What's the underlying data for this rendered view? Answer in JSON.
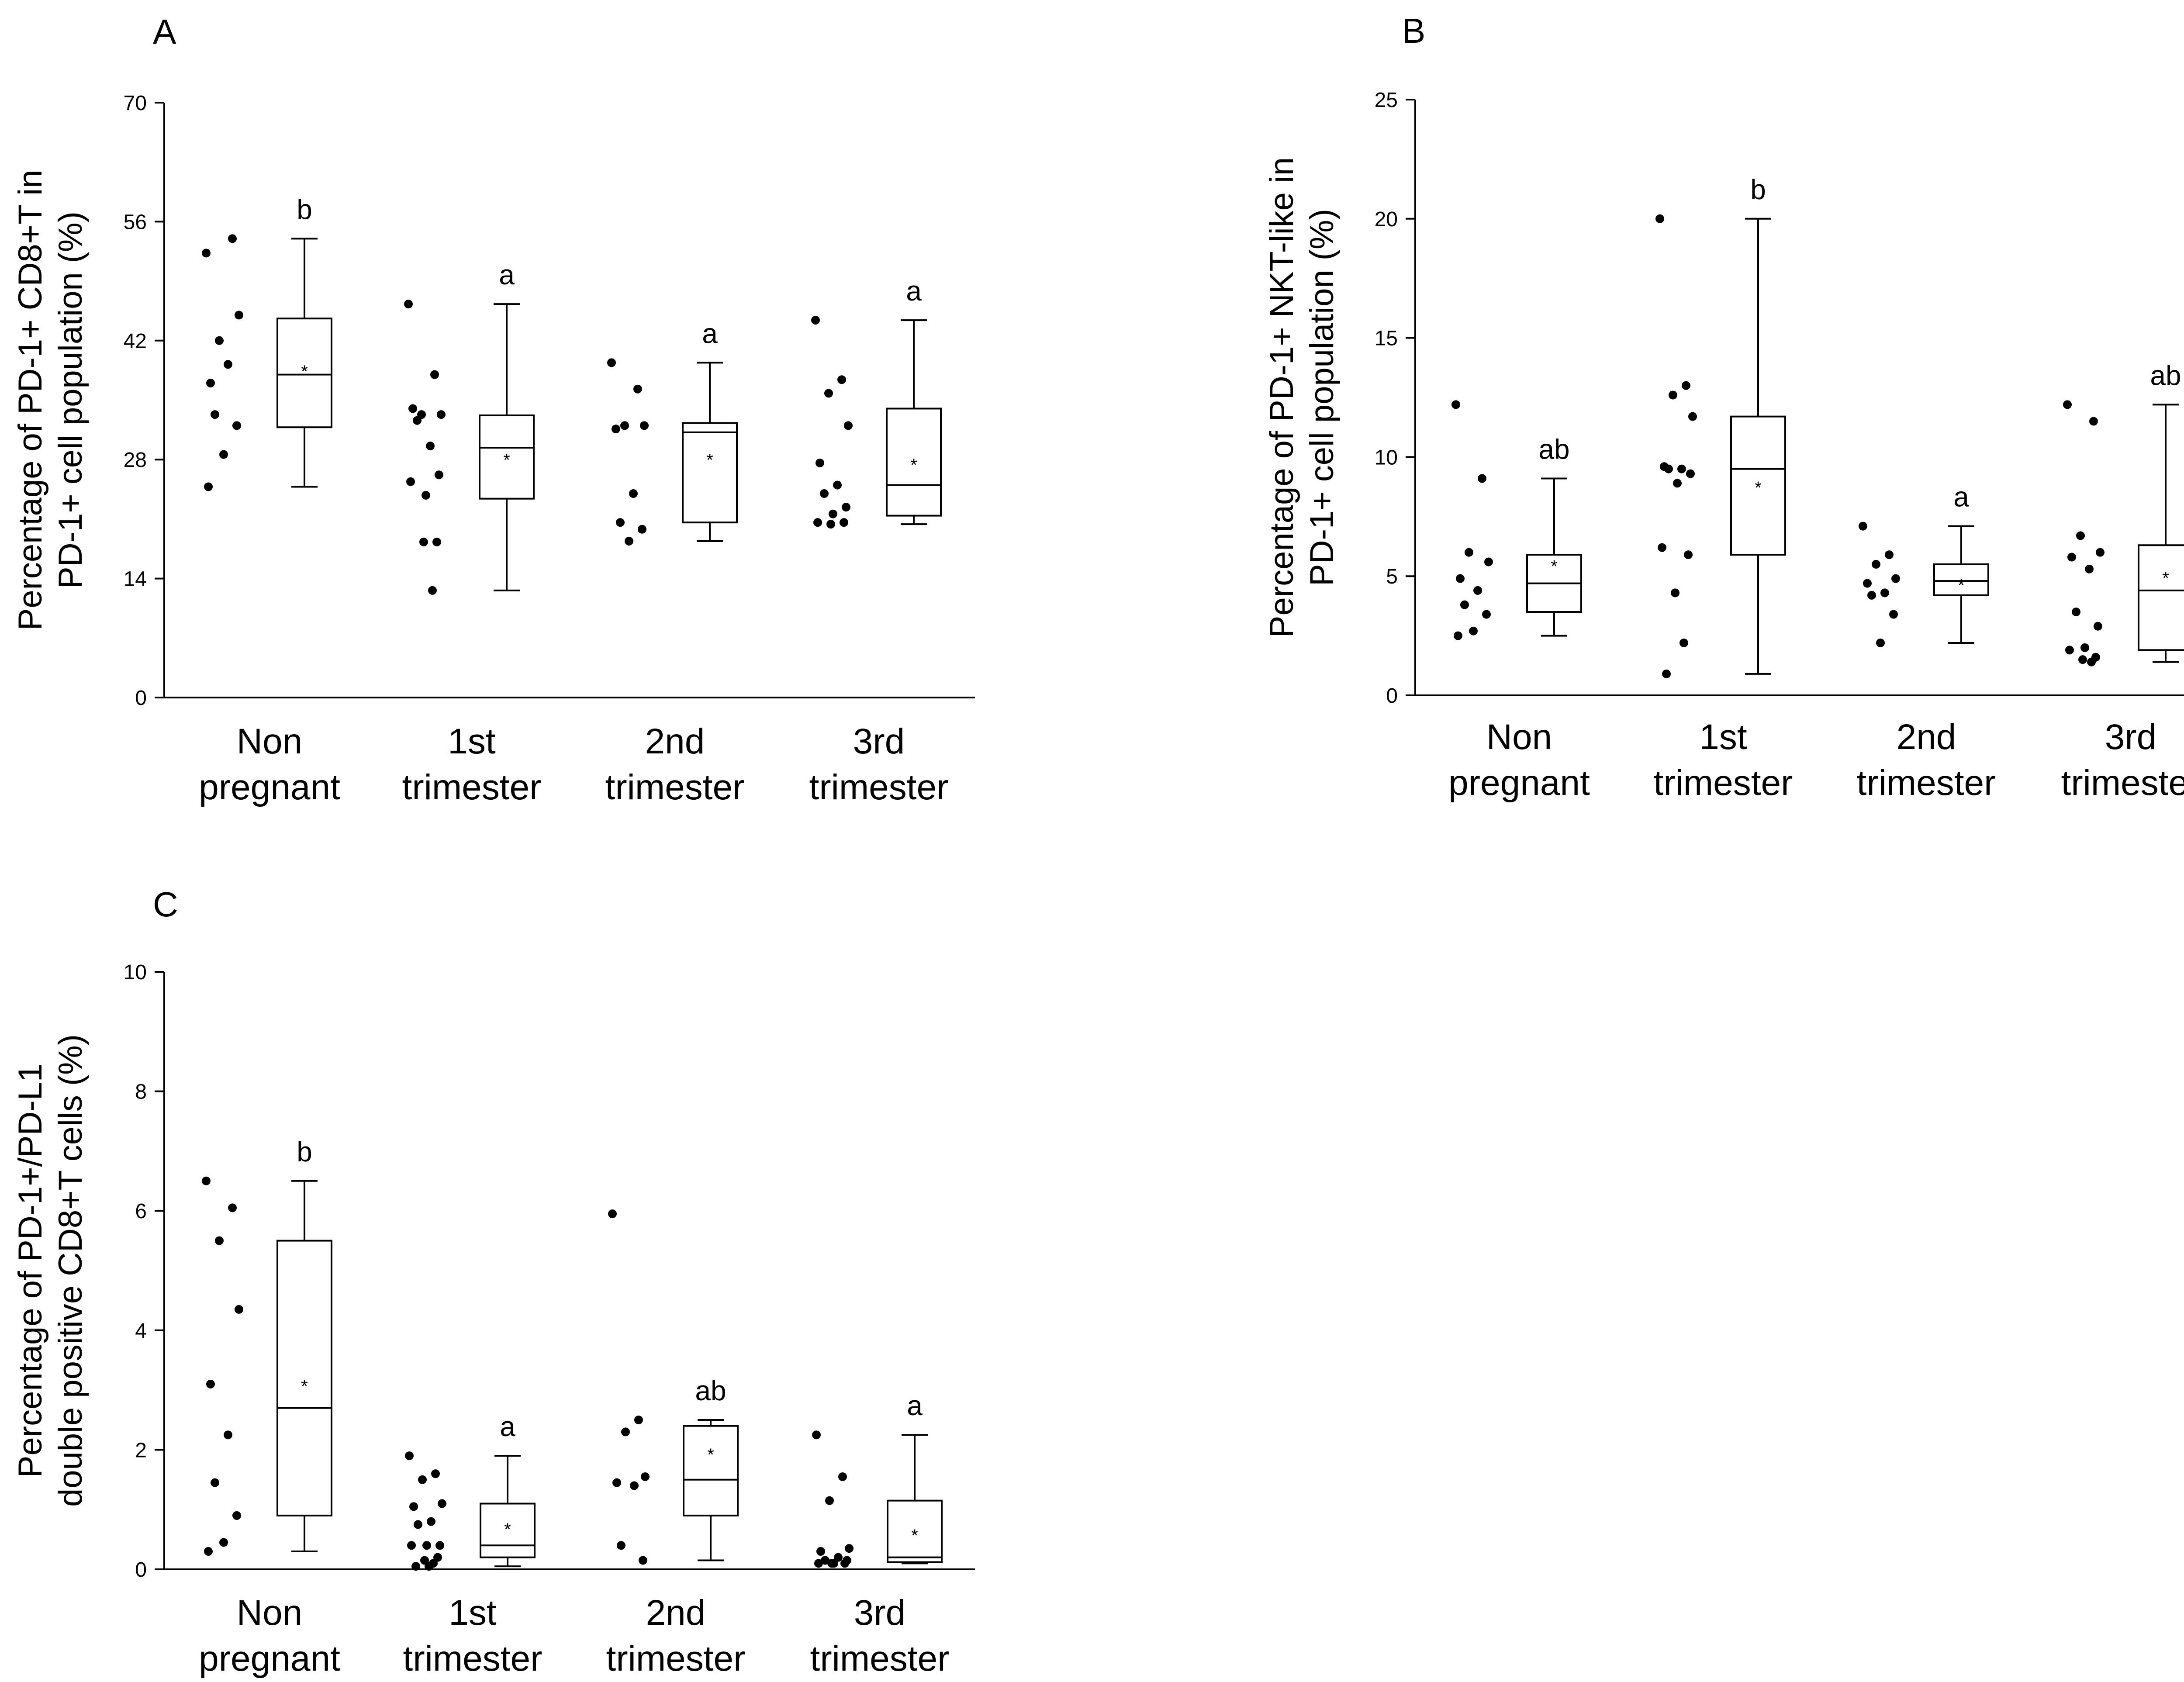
{
  "colors": {
    "ink": "#000000",
    "mean_marker": "#555555",
    "background": "#ffffff"
  },
  "categories": [
    [
      "Non",
      "pregnant"
    ],
    [
      "1st",
      "trimester"
    ],
    [
      "2nd",
      "trimester"
    ],
    [
      "3rd",
      "trimester"
    ]
  ],
  "chart_data": [
    {
      "panel": "A",
      "type": "box",
      "ylabel": [
        "Percentage of PD-1+ CD8+T in",
        "PD-1+ cell population (%)"
      ],
      "ylim": [
        0,
        70
      ],
      "yticks": [
        0,
        14,
        28,
        42,
        56,
        70
      ],
      "series": [
        {
          "category": "Non pregnant",
          "points": [
            52.3,
            54.0,
            42.0,
            45.0,
            37.0,
            39.2,
            33.3,
            32.0,
            28.6,
            24.8
          ],
          "box": {
            "min": 24.8,
            "q1": 31.8,
            "median": 38.0,
            "q3": 44.6,
            "max": 54.0,
            "mean": 38.6
          },
          "letter": "b"
        },
        {
          "category": "1st trimester",
          "points": [
            46.3,
            38.0,
            33.3,
            33.3,
            34.0,
            29.6,
            32.6,
            26.2,
            23.8,
            25.4,
            18.3,
            18.3,
            12.6
          ],
          "box": {
            "min": 12.6,
            "q1": 23.4,
            "median": 29.4,
            "q3": 33.2,
            "max": 46.3,
            "mean": 28.2
          },
          "letter": "a"
        },
        {
          "category": "2nd trimester",
          "points": [
            39.4,
            36.3,
            32.0,
            32.0,
            31.6,
            24.0,
            20.6,
            19.8,
            18.4
          ],
          "box": {
            "min": 18.4,
            "q1": 20.6,
            "median": 31.2,
            "q3": 32.3,
            "max": 39.4,
            "mean": 28.2
          },
          "letter": "a"
        },
        {
          "category": "3rd trimester",
          "points": [
            44.4,
            37.4,
            35.8,
            32.0,
            27.6,
            25.0,
            24.0,
            22.4,
            21.6,
            20.6,
            20.6,
            20.4
          ],
          "box": {
            "min": 20.4,
            "q1": 21.4,
            "median": 25.0,
            "q3": 34.0,
            "max": 44.4,
            "mean": 27.6
          },
          "letter": "a"
        }
      ]
    },
    {
      "panel": "B",
      "type": "box",
      "ylabel": [
        "Percentage of PD-1+ NKT-like in",
        "PD-1+ cell population (%)"
      ],
      "ylim": [
        0,
        25
      ],
      "yticks": [
        0,
        5,
        10,
        15,
        20,
        25
      ],
      "series": [
        {
          "category": "Non pregnant",
          "points": [
            12.2,
            9.1,
            6.0,
            5.6,
            4.9,
            4.4,
            3.8,
            3.4,
            2.7,
            2.5
          ],
          "box": {
            "min": 2.5,
            "q1": 3.5,
            "median": 4.7,
            "q3": 5.9,
            "max": 9.1,
            "mean": 5.5
          },
          "letter": "ab"
        },
        {
          "category": "1st trimester",
          "points": [
            20.0,
            13.0,
            12.6,
            11.7,
            9.6,
            9.5,
            9.5,
            9.3,
            8.9,
            6.2,
            5.9,
            4.3,
            2.2,
            0.9
          ],
          "box": {
            "min": 0.9,
            "q1": 5.9,
            "median": 9.5,
            "q3": 11.7,
            "max": 20.0,
            "mean": 8.8
          },
          "letter": "b"
        },
        {
          "category": "2nd trimester",
          "points": [
            7.1,
            5.9,
            5.5,
            4.9,
            4.7,
            4.3,
            4.2,
            3.4,
            2.2
          ],
          "box": {
            "min": 2.2,
            "q1": 4.2,
            "median": 4.8,
            "q3": 5.5,
            "max": 7.1,
            "mean": 4.7
          },
          "letter": "a"
        },
        {
          "category": "3rd trimester",
          "points": [
            12.2,
            11.5,
            6.7,
            6.0,
            5.8,
            5.3,
            3.5,
            2.9,
            2.0,
            1.9,
            1.6,
            1.5,
            1.4
          ],
          "box": {
            "min": 1.4,
            "q1": 1.9,
            "median": 4.4,
            "q3": 6.3,
            "max": 12.2,
            "mean": 5.0
          },
          "letter": "ab"
        }
      ]
    },
    {
      "panel": "C",
      "type": "box",
      "ylabel": [
        "Percentage of PD-1+/PD-L1",
        "double positive CD8+T cells (%)"
      ],
      "ylim": [
        0,
        10
      ],
      "yticks": [
        0,
        2,
        4,
        6,
        8,
        10
      ],
      "series": [
        {
          "category": "Non pregnant",
          "points": [
            6.5,
            6.05,
            5.5,
            4.35,
            3.1,
            2.25,
            1.45,
            0.9,
            0.45,
            0.3
          ],
          "box": {
            "min": 0.3,
            "q1": 0.9,
            "median": 2.7,
            "q3": 5.5,
            "max": 6.5,
            "mean": 3.1
          },
          "letter": "b"
        },
        {
          "category": "1st trimester",
          "points": [
            1.9,
            1.6,
            1.5,
            1.1,
            1.05,
            0.8,
            0.75,
            0.4,
            0.4,
            0.4,
            0.2,
            0.15,
            0.1,
            0.05,
            0.05
          ],
          "box": {
            "min": 0.05,
            "q1": 0.2,
            "median": 0.4,
            "q3": 1.1,
            "max": 1.9,
            "mean": 0.7
          },
          "letter": "a"
        },
        {
          "category": "2nd trimester",
          "points": [
            5.95,
            2.5,
            2.3,
            1.55,
            1.45,
            1.4,
            0.4,
            0.15
          ],
          "box": {
            "min": 0.15,
            "q1": 0.9,
            "median": 1.5,
            "q3": 2.4,
            "max": 2.5,
            "mean": 1.95
          },
          "letter": "ab"
        },
        {
          "category": "3rd trimester",
          "points": [
            2.25,
            1.55,
            1.15,
            0.35,
            0.3,
            0.2,
            0.15,
            0.15,
            0.1,
            0.1,
            0.1,
            0.1
          ],
          "box": {
            "min": 0.1,
            "q1": 0.12,
            "median": 0.2,
            "q3": 1.15,
            "max": 2.25,
            "mean": 0.6
          },
          "letter": "a"
        }
      ]
    }
  ]
}
